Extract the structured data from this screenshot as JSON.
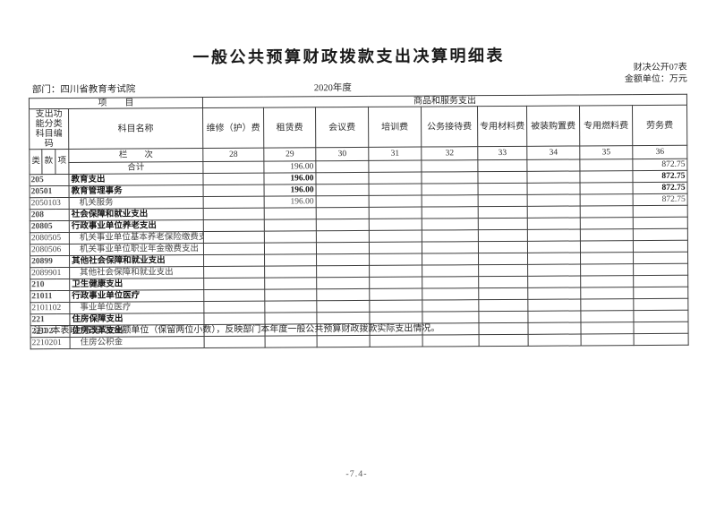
{
  "page": {
    "title": "一般公共预算财政拨款支出决算明细表",
    "doc_code": "财决公开07表",
    "unit_label": "金额单位：万元",
    "department": "部门：四川省教育考试院",
    "year": "2020年度",
    "note": "注：本表以“万元”为金额单位（保留两位小数），反映部门本年度一般公共预算财政拨款实际支出情况。",
    "page_number": "-7.4-"
  },
  "table": {
    "header": {
      "item_label": "项　　目",
      "group_label": "商品和服务支出",
      "code_label": "支出功\n能分类\n科目编码",
      "subject_label": "科目名称",
      "code_sub": [
        "类",
        "款",
        "项"
      ],
      "lanci_label": "栏　　次",
      "fee_columns": [
        "维修（护）费",
        "租赁费",
        "会议费",
        "培训费",
        "公务接待费",
        "专用材料费",
        "被装购置费",
        "专用燃料费",
        "劳务费"
      ],
      "column_numbers": [
        "28",
        "29",
        "30",
        "31",
        "32",
        "33",
        "34",
        "35",
        "36"
      ]
    },
    "rows": [
      {
        "code": "",
        "name": "合计",
        "style": "total",
        "values": [
          "",
          "196.00",
          "",
          "",
          "",
          "",
          "",
          "",
          "872.75"
        ]
      },
      {
        "code": "205",
        "name": "教育支出",
        "style": "bold",
        "values": [
          "",
          "196.00",
          "",
          "",
          "",
          "",
          "",
          "",
          "872.75"
        ]
      },
      {
        "code": "20501",
        "name": "教育管理事务",
        "style": "bold",
        "values": [
          "",
          "196.00",
          "",
          "",
          "",
          "",
          "",
          "",
          "872.75"
        ]
      },
      {
        "code": "2050103",
        "name": "机关服务",
        "style": "item",
        "values": [
          "",
          "196.00",
          "",
          "",
          "",
          "",
          "",
          "",
          "872.75"
        ]
      },
      {
        "code": "208",
        "name": "社会保障和就业支出",
        "style": "bold",
        "values": [
          "",
          "",
          "",
          "",
          "",
          "",
          "",
          "",
          ""
        ]
      },
      {
        "code": "20805",
        "name": "行政事业单位养老支出",
        "style": "bold",
        "values": [
          "",
          "",
          "",
          "",
          "",
          "",
          "",
          "",
          ""
        ]
      },
      {
        "code": "2080505",
        "name": "机关事业单位基本养老保险缴费支出",
        "style": "item",
        "values": [
          "",
          "",
          "",
          "",
          "",
          "",
          "",
          "",
          ""
        ]
      },
      {
        "code": "2080506",
        "name": "机关事业单位职业年金缴费支出",
        "style": "item",
        "values": [
          "",
          "",
          "",
          "",
          "",
          "",
          "",
          "",
          ""
        ]
      },
      {
        "code": "20899",
        "name": "其他社会保障和就业支出",
        "style": "bold",
        "values": [
          "",
          "",
          "",
          "",
          "",
          "",
          "",
          "",
          ""
        ]
      },
      {
        "code": "2089901",
        "name": "其他社会保障和就业支出",
        "style": "item",
        "values": [
          "",
          "",
          "",
          "",
          "",
          "",
          "",
          "",
          ""
        ]
      },
      {
        "code": "210",
        "name": "卫生健康支出",
        "style": "bold",
        "values": [
          "",
          "",
          "",
          "",
          "",
          "",
          "",
          "",
          ""
        ]
      },
      {
        "code": "21011",
        "name": "行政事业单位医疗",
        "style": "bold",
        "values": [
          "",
          "",
          "",
          "",
          "",
          "",
          "",
          "",
          ""
        ]
      },
      {
        "code": "2101102",
        "name": "事业单位医疗",
        "style": "item",
        "values": [
          "",
          "",
          "",
          "",
          "",
          "",
          "",
          "",
          ""
        ]
      },
      {
        "code": "221",
        "name": "住房保障支出",
        "style": "bold",
        "values": [
          "",
          "",
          "",
          "",
          "",
          "",
          "",
          "",
          ""
        ]
      },
      {
        "code": "22102",
        "name": "住房改革支出",
        "style": "bold",
        "values": [
          "",
          "",
          "",
          "",
          "",
          "",
          "",
          "",
          ""
        ]
      },
      {
        "code": "2210201",
        "name": "住房公积金",
        "style": "item",
        "values": [
          "",
          "",
          "",
          "",
          "",
          "",
          "",
          "",
          ""
        ]
      }
    ]
  }
}
